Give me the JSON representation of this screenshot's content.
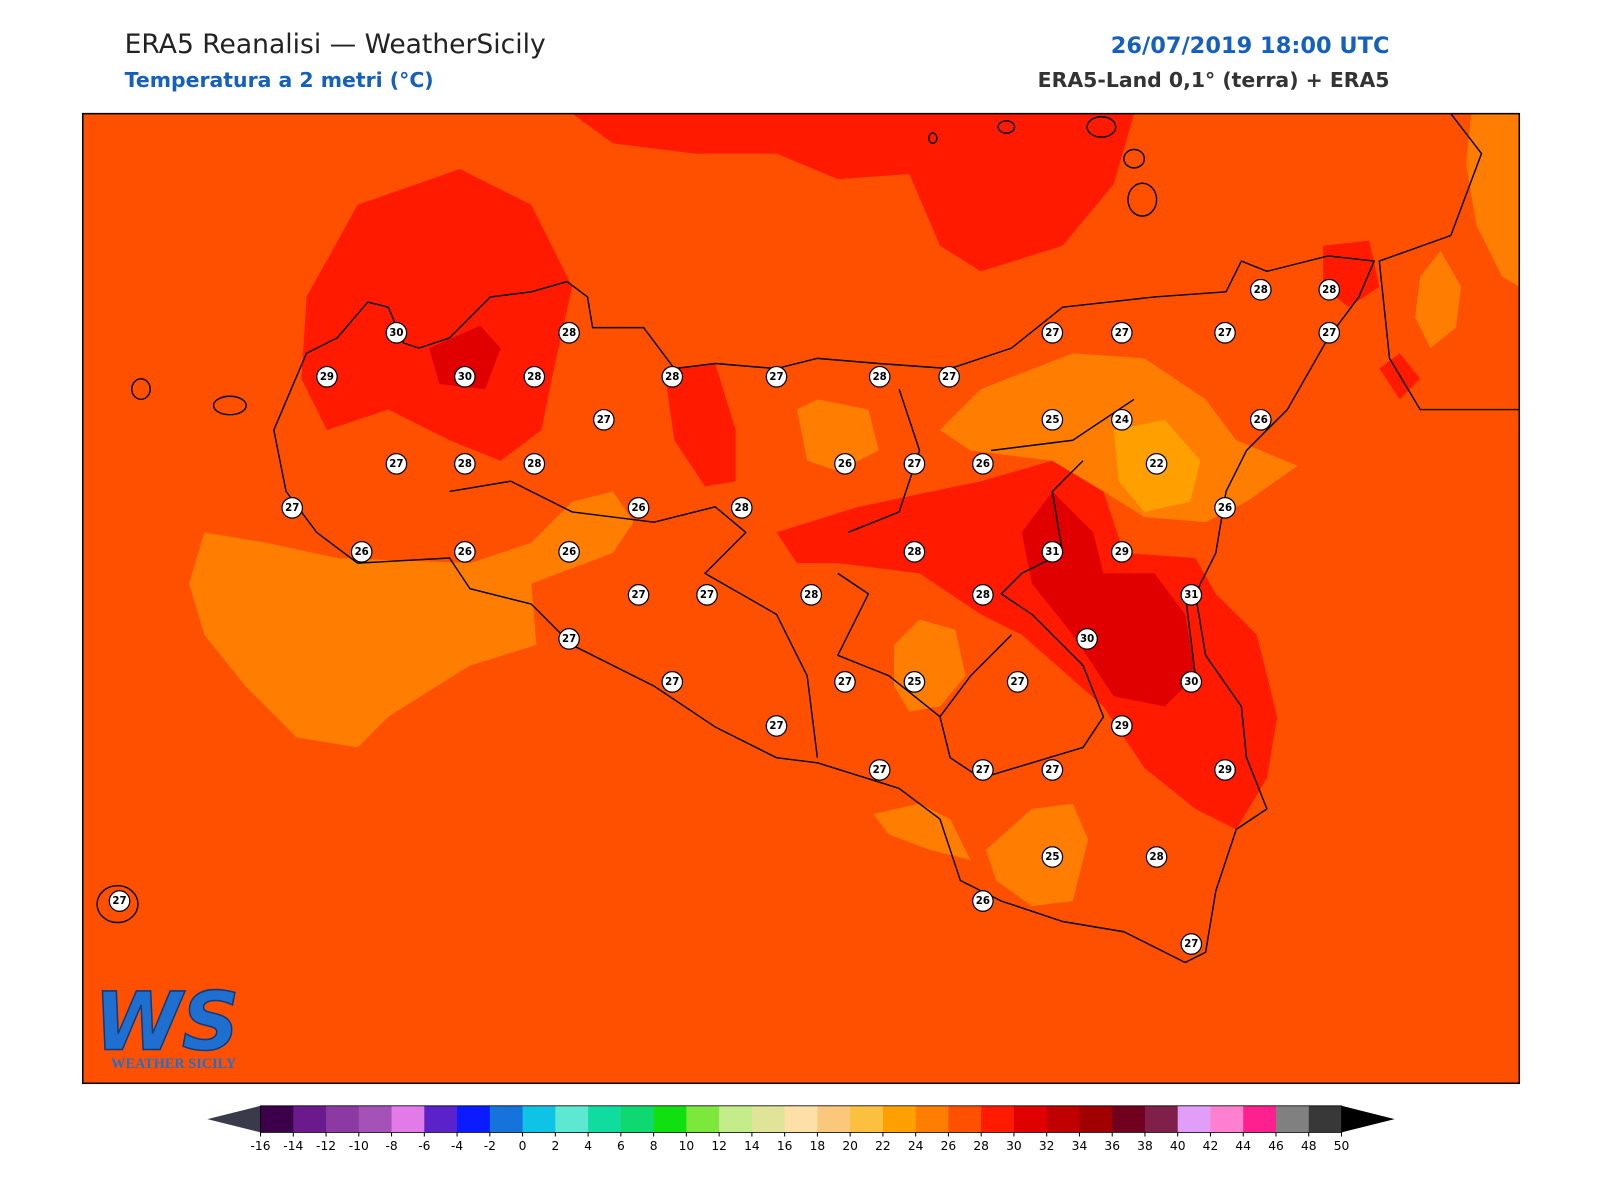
{
  "header": {
    "title": "ERA5 Reanalisi — WeatherSicily",
    "subtitle": "Temperatura a 2 metri (°C)",
    "datetime": "26/07/2019 18:00 UTC",
    "source": "ERA5-Land 0,1° (terra) + ERA5"
  },
  "stations": [
    30,
    28,
    29,
    30,
    28,
    27,
    28,
    27,
    28,
    27,
    27,
    27,
    27,
    27,
    28,
    28,
    25,
    24,
    26,
    27,
    28,
    28,
    26,
    27,
    26,
    22,
    27,
    26,
    28,
    26,
    26,
    26,
    26,
    28,
    31,
    29,
    27,
    27,
    28,
    28,
    31,
    27,
    30,
    27,
    27,
    25,
    27,
    30,
    27,
    29,
    27,
    27,
    27,
    29,
    25,
    28,
    26,
    27,
    27
  ],
  "colorbar": {
    "ticks": [
      -16,
      -14,
      -12,
      -10,
      -8,
      -6,
      -4,
      -2,
      0,
      2,
      4,
      6,
      8,
      10,
      12,
      14,
      16,
      18,
      20,
      22,
      24,
      26,
      28,
      30,
      32,
      34,
      36,
      38,
      40,
      42,
      44,
      46,
      48,
      50
    ],
    "colors": [
      "#3b0049",
      "#6a1a8c",
      "#8b3aa3",
      "#a552b8",
      "#e27ae8",
      "#5a22c8",
      "#0a1cff",
      "#1573db",
      "#0fc3e6",
      "#5de8d2",
      "#10dca0",
      "#10d870",
      "#10e010",
      "#7de83c",
      "#c4ec8a",
      "#e0e498",
      "#fde0a8",
      "#fac87a",
      "#fcc040",
      "#ffa000",
      "#ff7d00",
      "#ff5000",
      "#ff1a00",
      "#e00000",
      "#c00000",
      "#a00000",
      "#70001e",
      "#802048",
      "#e09ef8",
      "#ff80d0",
      "#ff2090",
      "#808080",
      "#383838"
    ],
    "under_color": "#3a3a4a",
    "over_color": "#000000"
  },
  "logo": {
    "mark": "WS",
    "name": "WEATHER SICILY"
  }
}
